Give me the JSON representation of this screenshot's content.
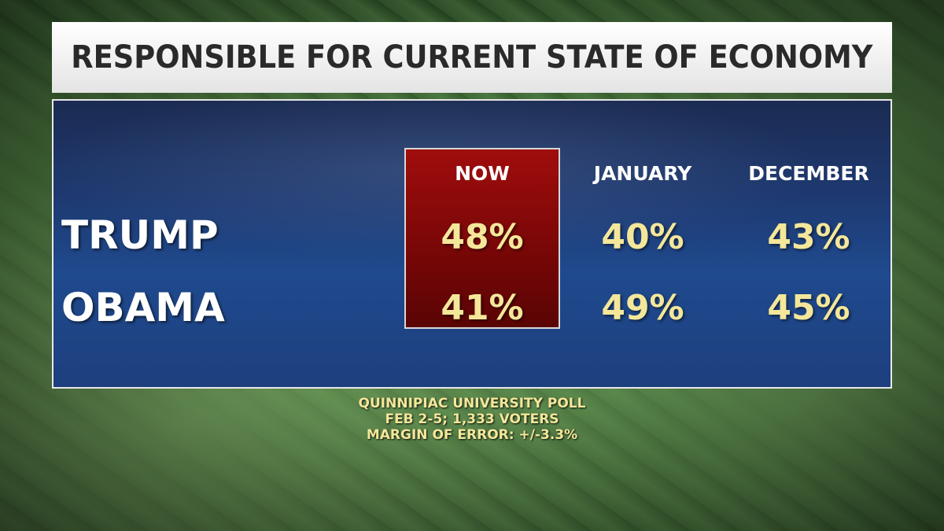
{
  "title": "RESPONSIBLE FOR CURRENT STATE OF ECONOMY",
  "chart_data": {
    "type": "table",
    "title": "RESPONSIBLE FOR CURRENT STATE OF ECONOMY",
    "columns": [
      "NOW",
      "JANUARY",
      "DECEMBER"
    ],
    "rows": [
      {
        "name": "TRUMP",
        "values": [
          "48%",
          "40%",
          "43%"
        ]
      },
      {
        "name": "OBAMA",
        "values": [
          "41%",
          "49%",
          "45%"
        ]
      }
    ],
    "highlighted_column": "NOW",
    "highlight_color": "#8b0a0a",
    "value_color": "#f4e79a"
  },
  "source": {
    "line1": "QUINNIPIAC UNIVERSITY POLL",
    "line2": "FEB 2-5; 1,333 VOTERS",
    "line3": "MARGIN OF ERROR: +/-3.3%"
  }
}
